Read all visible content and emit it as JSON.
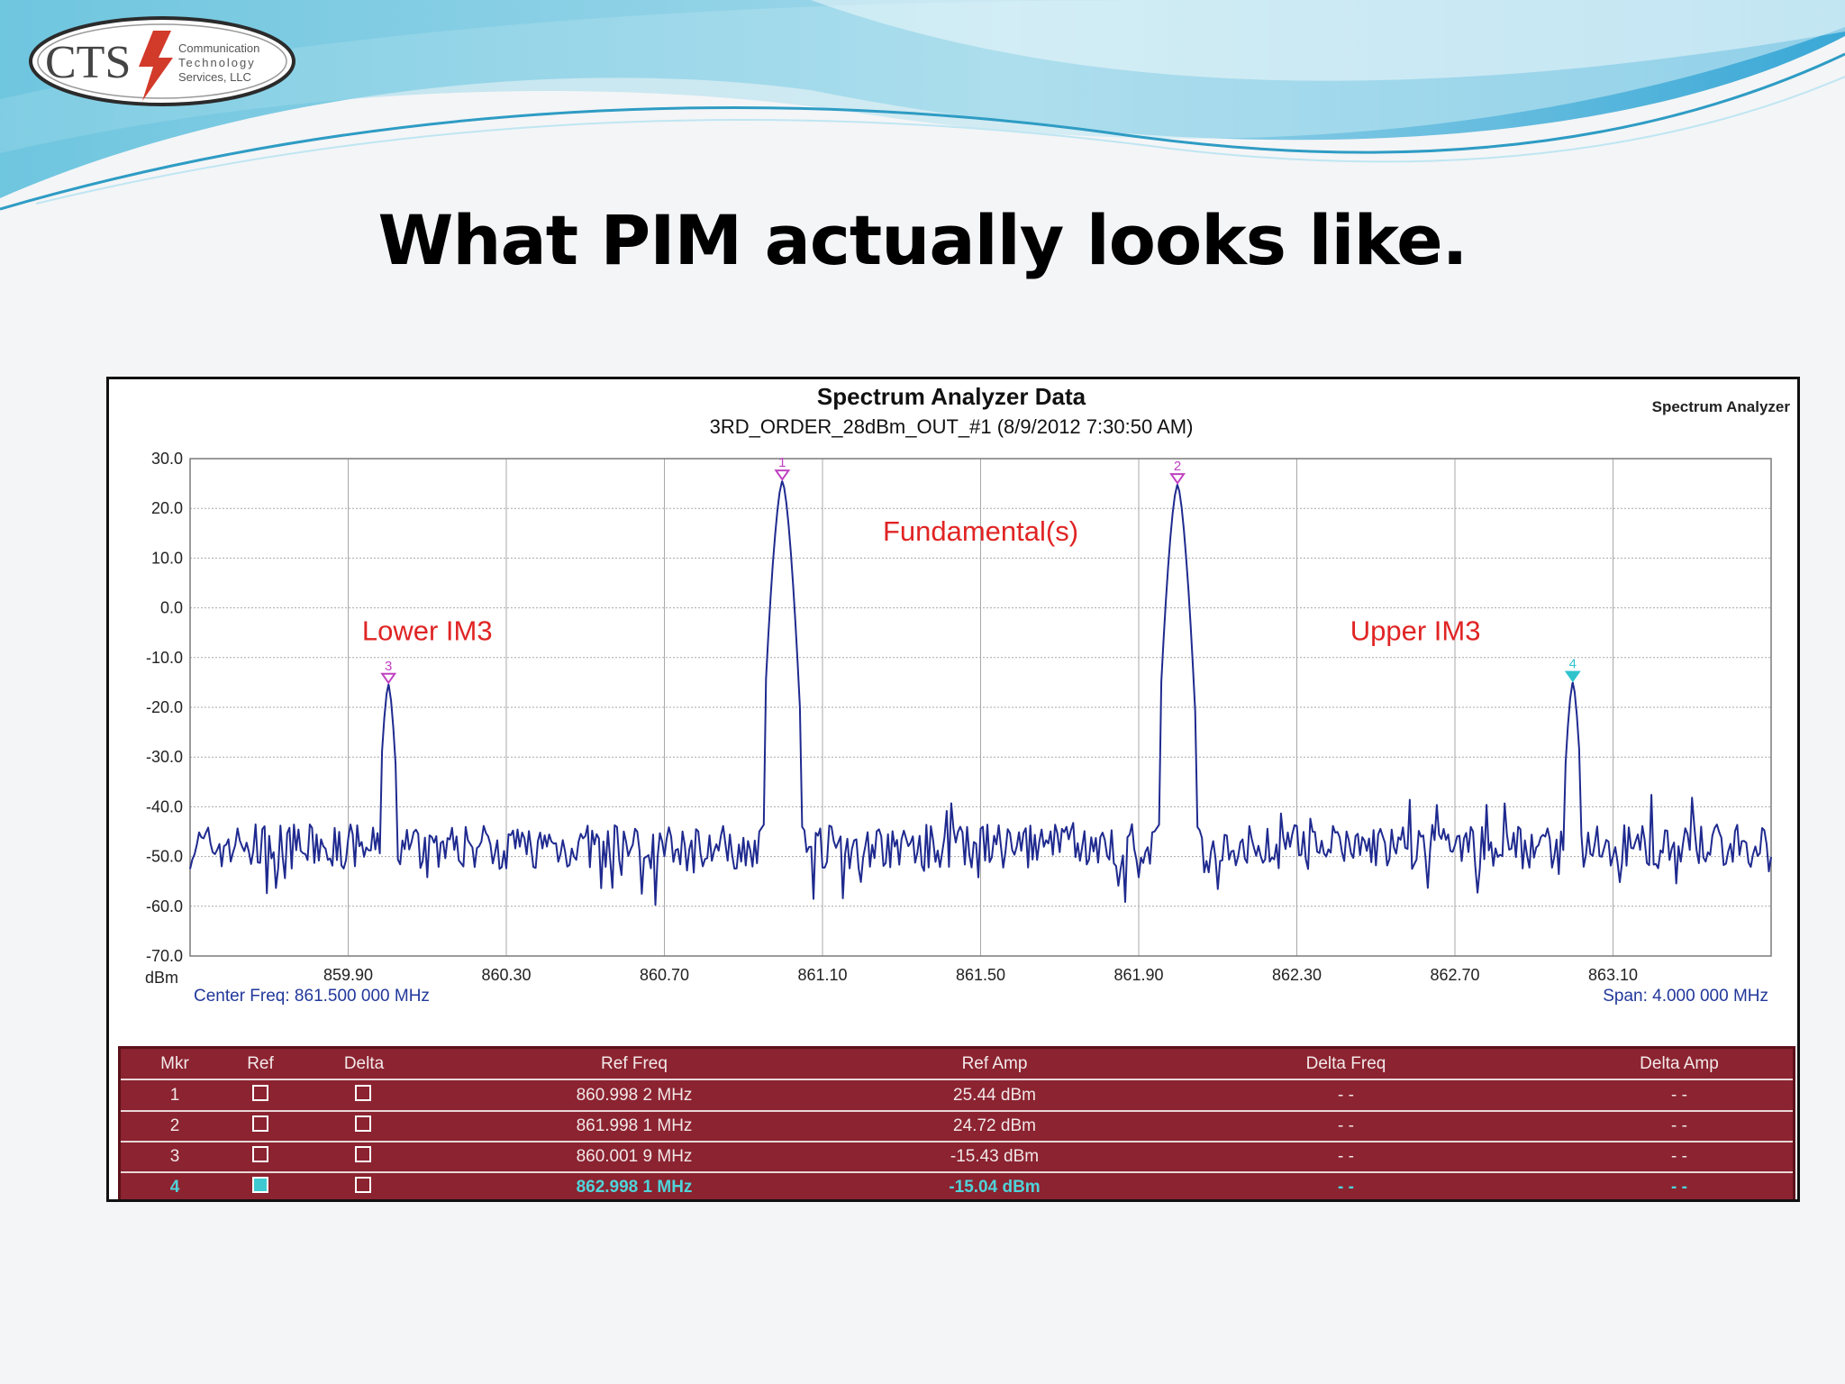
{
  "slide": {
    "title": "What PIM actually looks like."
  },
  "logo": {
    "brand": "CTS",
    "line1": "Communication",
    "line2": "Technology",
    "line3": "Services, LLC"
  },
  "chart_data": {
    "type": "line",
    "title": "Spectrum Analyzer Data",
    "subtitle": "3RD_ORDER_28dBm_OUT_#1 (8/9/2012 7:30:50 AM)",
    "corner_label": "Spectrum Analyzer",
    "ylabel": "dBm",
    "ylim": [
      -70,
      30
    ],
    "xlim": [
      859.5,
      863.5
    ],
    "yticks": [
      "30.0",
      "20.0",
      "10.0",
      "0.0",
      "-10.0",
      "-20.0",
      "-30.0",
      "-40.0",
      "-50.0",
      "-60.0",
      "-70.0"
    ],
    "xticks": [
      "859.90",
      "860.30",
      "860.70",
      "861.10",
      "861.50",
      "861.90",
      "862.30",
      "862.70",
      "863.10"
    ],
    "grid": true,
    "center_freq": "Center Freq: 861.500 000 MHz",
    "span": "Span: 4.000 000 MHz",
    "noise_floor_dbm": -48,
    "peaks": [
      {
        "marker": "1",
        "freq": 860.9982,
        "amp": 25.44
      },
      {
        "marker": "2",
        "freq": 861.9981,
        "amp": 24.72
      },
      {
        "marker": "3",
        "freq": 860.0019,
        "amp": -15.43
      },
      {
        "marker": "4",
        "freq": 862.9981,
        "amp": -15.04
      }
    ],
    "annotations": [
      {
        "text": "Fundamental(s)",
        "freq": 861.5,
        "amp": 13.5
      },
      {
        "text": "Lower IM3",
        "freq": 860.1,
        "amp": -6.5
      },
      {
        "text": "Upper IM3",
        "freq": 862.6,
        "amp": -6.5
      }
    ],
    "colors": {
      "trace": "#1f2a8f",
      "annotation": "#e02424",
      "marker": "#c040c0",
      "active_marker": "#2fc4cc",
      "grid": "#a9a9a9",
      "info_text": "#22389a"
    }
  },
  "markers_table": {
    "headers": [
      "Mkr",
      "Ref",
      "Delta",
      "Ref Freq",
      "Ref Amp",
      "Delta Freq",
      "Delta Amp"
    ],
    "rows": [
      {
        "mkr": "1",
        "ref_checked": false,
        "delta_checked": false,
        "ref_freq": "860.998 2 MHz",
        "ref_amp": "25.44 dBm",
        "delta_freq": "- -",
        "delta_amp": "- -",
        "active": false
      },
      {
        "mkr": "2",
        "ref_checked": false,
        "delta_checked": false,
        "ref_freq": "861.998 1 MHz",
        "ref_amp": "24.72 dBm",
        "delta_freq": "- -",
        "delta_amp": "- -",
        "active": false
      },
      {
        "mkr": "3",
        "ref_checked": false,
        "delta_checked": false,
        "ref_freq": "860.001 9 MHz",
        "ref_amp": "-15.43 dBm",
        "delta_freq": "- -",
        "delta_amp": "- -",
        "active": false
      },
      {
        "mkr": "4",
        "ref_checked": true,
        "delta_checked": false,
        "ref_freq": "862.998 1 MHz",
        "ref_amp": "-15.04 dBm",
        "delta_freq": "- -",
        "delta_amp": "- -",
        "active": true
      }
    ]
  }
}
